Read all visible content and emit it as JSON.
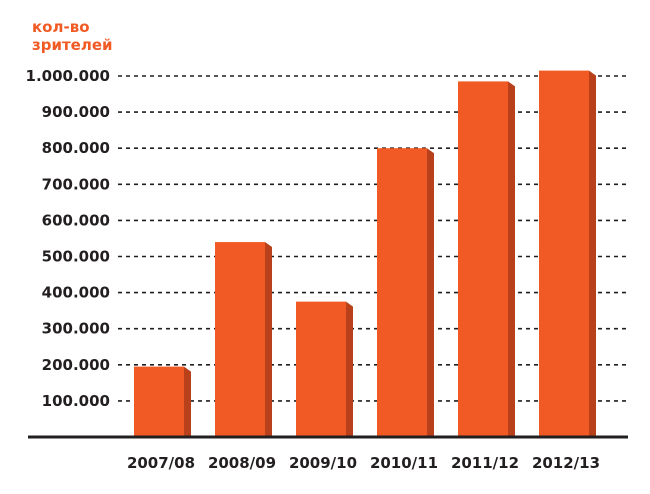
{
  "chart_data": {
    "type": "bar",
    "ylabel_lines": [
      "кол-во",
      "зрителей"
    ],
    "categories": [
      "2007/08",
      "2008/09",
      "2009/10",
      "2010/11",
      "2011/12",
      "2012/13"
    ],
    "values": [
      195000,
      540000,
      375000,
      800000,
      985000,
      1015000
    ],
    "ylim": [
      0,
      1000000
    ],
    "yticks": [
      {
        "value": 100000,
        "label": "100.000"
      },
      {
        "value": 200000,
        "label": "200.000"
      },
      {
        "value": 300000,
        "label": "300.000"
      },
      {
        "value": 400000,
        "label": "400.000"
      },
      {
        "value": 500000,
        "label": "500.000"
      },
      {
        "value": 600000,
        "label": "600.000"
      },
      {
        "value": 700000,
        "label": "700.000"
      },
      {
        "value": 800000,
        "label": "800.000"
      },
      {
        "value": 900000,
        "label": "900.000"
      },
      {
        "value": 1000000,
        "label": "1.000.000"
      }
    ],
    "grid": true,
    "grid_style": "dashed",
    "bar_color": "#f15a24",
    "bar_side_color": "#b8401a",
    "axis_color": "#231f20"
  }
}
